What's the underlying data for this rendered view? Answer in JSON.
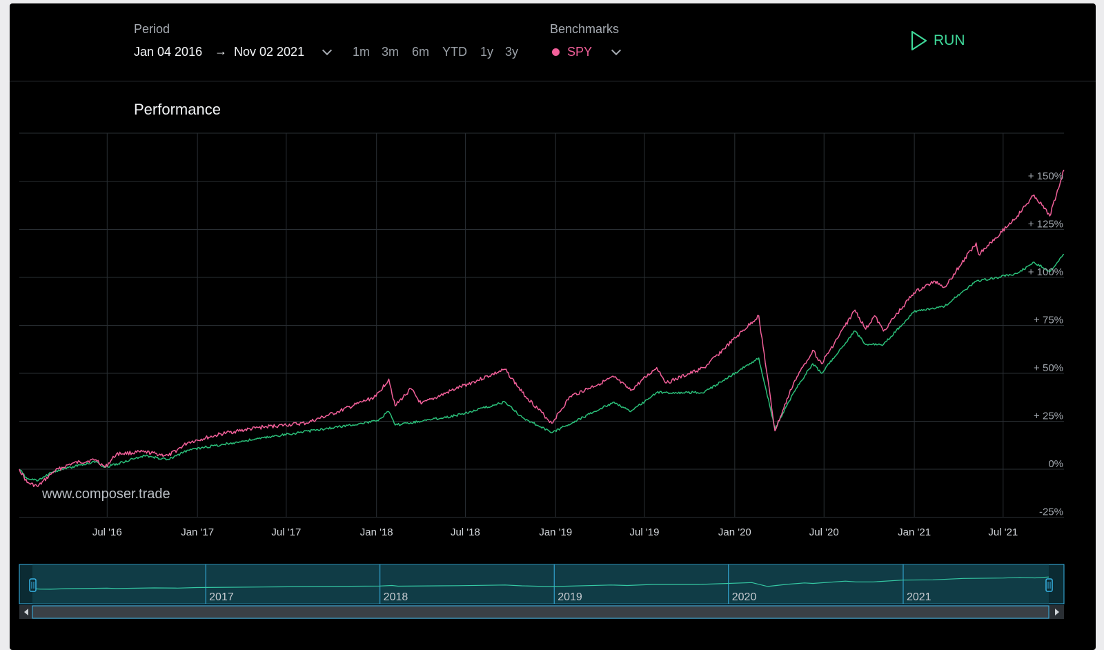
{
  "toolbar": {
    "period_label": "Period",
    "start_date": "Jan 04 2016",
    "end_date": "Nov 02 2021",
    "presets": [
      "1m",
      "3m",
      "6m",
      "YTD",
      "1y",
      "3y"
    ],
    "benchmarks_label": "Benchmarks",
    "benchmark": "SPY",
    "benchmark_color": "#f2609a",
    "run_label": "RUN",
    "run_color": "#3fd99a"
  },
  "chart": {
    "title": "Performance",
    "watermark": "www.composer.trade",
    "navigator_ticks": [
      "2017",
      "2018",
      "2019",
      "2020",
      "2021"
    ]
  },
  "chart_data": {
    "type": "line",
    "title": "Performance",
    "xlabel": "",
    "ylabel": "",
    "x_tick_labels": [
      "Jul '16",
      "Jan '17",
      "Jul '17",
      "Jan '18",
      "Jul '18",
      "Jan '19",
      "Jul '19",
      "Jan '20",
      "Jul '20",
      "Jan '21",
      "Jul '21"
    ],
    "y_tick_labels": [
      "-25%",
      "0%",
      "+ 25%",
      "+ 50%",
      "+ 75%",
      "+ 100%",
      "+ 125%",
      "+ 150%"
    ],
    "ylim": [
      -25,
      175
    ],
    "xlim": [
      "2016-01-04",
      "2021-11-02"
    ],
    "grid": true,
    "series": [
      {
        "name": "SPY",
        "color": "#f2609a",
        "points": [
          [
            "2016-01-04",
            0
          ],
          [
            "2016-01-20",
            -7
          ],
          [
            "2016-02-11",
            -9
          ],
          [
            "2016-03-15",
            -1
          ],
          [
            "2016-04-20",
            3
          ],
          [
            "2016-06-08",
            5
          ],
          [
            "2016-06-27",
            1
          ],
          [
            "2016-07-20",
            8
          ],
          [
            "2016-09-15",
            9
          ],
          [
            "2016-11-03",
            7
          ],
          [
            "2016-12-13",
            14
          ],
          [
            "2017-03-01",
            19
          ],
          [
            "2017-05-15",
            22
          ],
          [
            "2017-08-10",
            24
          ],
          [
            "2017-10-15",
            30
          ],
          [
            "2017-12-31",
            38
          ],
          [
            "2018-01-26",
            47
          ],
          [
            "2018-02-08",
            33
          ],
          [
            "2018-03-12",
            42
          ],
          [
            "2018-04-02",
            34
          ],
          [
            "2018-06-12",
            42
          ],
          [
            "2018-09-20",
            52
          ],
          [
            "2018-10-25",
            40
          ],
          [
            "2018-12-24",
            24
          ],
          [
            "2019-01-31",
            38
          ],
          [
            "2019-04-30",
            48
          ],
          [
            "2019-06-03",
            41
          ],
          [
            "2019-07-26",
            53
          ],
          [
            "2019-08-15",
            45
          ],
          [
            "2019-10-31",
            53
          ],
          [
            "2020-02-19",
            80
          ],
          [
            "2020-03-23",
            20
          ],
          [
            "2020-04-30",
            45
          ],
          [
            "2020-06-08",
            62
          ],
          [
            "2020-06-26",
            55
          ],
          [
            "2020-09-02",
            83
          ],
          [
            "2020-09-24",
            73
          ],
          [
            "2020-10-12",
            80
          ],
          [
            "2020-10-30",
            72
          ],
          [
            "2020-12-31",
            92
          ],
          [
            "2021-02-12",
            98
          ],
          [
            "2021-03-04",
            95
          ],
          [
            "2021-05-07",
            118
          ],
          [
            "2021-05-12",
            112
          ],
          [
            "2021-07-30",
            132
          ],
          [
            "2021-09-02",
            143
          ],
          [
            "2021-10-04",
            132
          ],
          [
            "2021-11-02",
            156
          ]
        ]
      },
      {
        "name": "",
        "color": "#2bc07a",
        "points": [
          [
            "2016-01-04",
            0
          ],
          [
            "2016-01-20",
            -5
          ],
          [
            "2016-02-11",
            -6
          ],
          [
            "2016-03-15",
            -1
          ],
          [
            "2016-06-08",
            4
          ],
          [
            "2016-06-27",
            1
          ],
          [
            "2016-09-15",
            7
          ],
          [
            "2016-11-03",
            5
          ],
          [
            "2016-12-13",
            10
          ],
          [
            "2017-06-01",
            17
          ],
          [
            "2017-12-31",
            25
          ],
          [
            "2018-01-26",
            30
          ],
          [
            "2018-02-08",
            23
          ],
          [
            "2018-06-12",
            28
          ],
          [
            "2018-09-20",
            35
          ],
          [
            "2018-10-25",
            27
          ],
          [
            "2018-12-24",
            19
          ],
          [
            "2019-04-30",
            35
          ],
          [
            "2019-06-03",
            30
          ],
          [
            "2019-07-26",
            40
          ],
          [
            "2019-10-31",
            40
          ],
          [
            "2020-02-19",
            58
          ],
          [
            "2020-03-23",
            21
          ],
          [
            "2020-04-30",
            40
          ],
          [
            "2020-06-08",
            55
          ],
          [
            "2020-06-26",
            50
          ],
          [
            "2020-09-02",
            72
          ],
          [
            "2020-09-24",
            65
          ],
          [
            "2020-10-30",
            65
          ],
          [
            "2020-12-31",
            82
          ],
          [
            "2021-03-04",
            85
          ],
          [
            "2021-05-07",
            98
          ],
          [
            "2021-07-30",
            102
          ],
          [
            "2021-09-02",
            108
          ],
          [
            "2021-10-04",
            103
          ],
          [
            "2021-11-02",
            112
          ]
        ]
      }
    ]
  }
}
